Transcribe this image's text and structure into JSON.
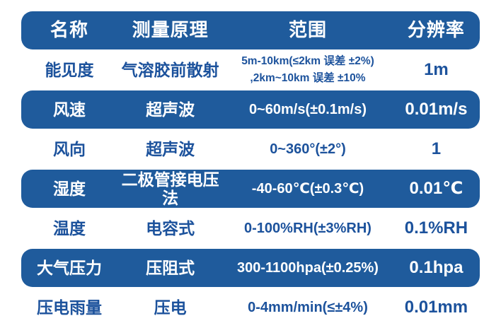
{
  "colors": {
    "primary_blue": "#1f5b9c",
    "text_blue": "#1c529c",
    "background": "#ffffff"
  },
  "chart_data": {
    "type": "table",
    "title": "",
    "columns": [
      "名称",
      "测量原理",
      "范围",
      "分辨率"
    ],
    "rows": [
      {
        "name": "能见度",
        "principle": "气溶胶前散射",
        "range": "5m-10km(≤2km 误差 ±2%)\n,2km~10km 误差 ±10%",
        "resolution": "1m"
      },
      {
        "name": "风速",
        "principle": "超声波",
        "range": "0~60m/s(±0.1m/s)",
        "resolution": "0.01m/s"
      },
      {
        "name": "风向",
        "principle": "超声波",
        "range": "0~360°(±2°)",
        "resolution": "1"
      },
      {
        "name": "湿度",
        "principle": "二极管接电压法",
        "range": "-40-60℃(±0.3℃)",
        "resolution": "0.01℃"
      },
      {
        "name": "温度",
        "principle": "电容式",
        "range": "0-100%RH(±3%RH)",
        "resolution": "0.1%RH"
      },
      {
        "name": "大气压力",
        "principle": "压阻式",
        "range": "300-1100hpa(±0.25%)",
        "resolution": "0.1hpa"
      },
      {
        "name": "压电雨量",
        "principle": "压电",
        "range": "0-4mm/min(≤±4%)",
        "resolution": "0.01mm"
      }
    ]
  }
}
